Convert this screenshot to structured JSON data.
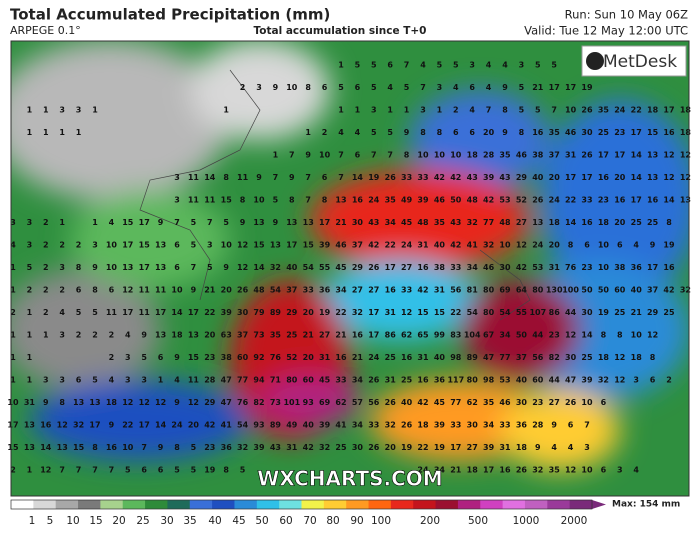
{
  "header": {
    "title": "Total Accumulated Precipitation (mm)",
    "model": "ARPEGE 0.1°",
    "subtitle": "Total accumulation since T+0",
    "run": "Run: Sun 10 May 06Z",
    "valid": "Valid: Tue 12 May 12:00 UTC"
  },
  "logo": "MetDesk",
  "watermark": "WXCHARTS.COM",
  "legend": {
    "labels": [
      1,
      5,
      10,
      15,
      20,
      25,
      30,
      35,
      40,
      45,
      50,
      60,
      70,
      80,
      90,
      100,
      200,
      500,
      1000,
      2000
    ],
    "colors": [
      "#ffffff",
      "#d8d8d8",
      "#a8a8a8",
      "#7a7a7a",
      "#a7d28d",
      "#5cb85c",
      "#2e8b3a",
      "#1e6b5a",
      "#3a6fd8",
      "#1f4fc0",
      "#2a8bd8",
      "#30c0e8",
      "#6ee0e0",
      "#f2f24a",
      "#ffcc33",
      "#ff9a22",
      "#ff6611",
      "#e8281c",
      "#c4141c",
      "#9b1030",
      "#b02080",
      "#d040c0",
      "#e070e0",
      "#c060c0",
      "#9a3a9a",
      "#7a2a7a"
    ],
    "max": "Max: 154 mm"
  },
  "grid": {
    "rows": [
      [
        null,
        null,
        null,
        null,
        null,
        null,
        null,
        null,
        null,
        null,
        null,
        null,
        null,
        null,
        null,
        null,
        null,
        null,
        null,
        null,
        1,
        5,
        5,
        6,
        7,
        4,
        5,
        5,
        3,
        4,
        4,
        3,
        5,
        5,
        null,
        null,
        null,
        null,
        null,
        null,
        null,
        null
      ],
      [
        null,
        null,
        null,
        null,
        null,
        null,
        null,
        null,
        null,
        null,
        null,
        null,
        null,
        null,
        2,
        3,
        9,
        10,
        8,
        6,
        5,
        6,
        5,
        4,
        5,
        7,
        3,
        4,
        6,
        4,
        9,
        5,
        21,
        17,
        17,
        19,
        null,
        null,
        null,
        null,
        null,
        null
      ],
      [
        null,
        1,
        1,
        3,
        3,
        1,
        null,
        null,
        null,
        null,
        null,
        null,
        null,
        1,
        null,
        null,
        null,
        null,
        null,
        null,
        1,
        1,
        3,
        1,
        1,
        3,
        1,
        2,
        4,
        7,
        8,
        5,
        5,
        7,
        10,
        26,
        35,
        24,
        22,
        18,
        17,
        18
      ],
      [
        null,
        1,
        1,
        1,
        1,
        null,
        null,
        null,
        null,
        null,
        null,
        null,
        null,
        null,
        null,
        null,
        null,
        null,
        1,
        2,
        4,
        4,
        5,
        5,
        9,
        8,
        8,
        6,
        6,
        20,
        9,
        8,
        16,
        35,
        46,
        30,
        25,
        23,
        17,
        15,
        16,
        18
      ],
      [
        null,
        null,
        null,
        null,
        null,
        null,
        null,
        null,
        null,
        null,
        null,
        null,
        null,
        null,
        null,
        null,
        1,
        7,
        9,
        10,
        7,
        6,
        7,
        7,
        8,
        10,
        10,
        10,
        18,
        28,
        35,
        46,
        38,
        37,
        31,
        26,
        17,
        17,
        14,
        13,
        12,
        12
      ],
      [
        null,
        null,
        null,
        null,
        null,
        null,
        null,
        null,
        null,
        null,
        3,
        11,
        14,
        8,
        11,
        9,
        7,
        9,
        7,
        6,
        7,
        14,
        19,
        26,
        33,
        33,
        42,
        42,
        43,
        39,
        43,
        29,
        40,
        20,
        17,
        17,
        16,
        20,
        14,
        13,
        12,
        12
      ],
      [
        null,
        null,
        null,
        null,
        null,
        null,
        null,
        null,
        null,
        null,
        3,
        11,
        11,
        15,
        8,
        10,
        5,
        8,
        7,
        8,
        13,
        16,
        24,
        35,
        49,
        39,
        46,
        50,
        48,
        42,
        53,
        52,
        26,
        24,
        22,
        33,
        23,
        16,
        17,
        16,
        14,
        13
      ],
      [
        3,
        3,
        2,
        1,
        null,
        1,
        4,
        15,
        17,
        9,
        7,
        5,
        7,
        5,
        9,
        13,
        9,
        13,
        13,
        17,
        21,
        30,
        43,
        34,
        45,
        48,
        35,
        43,
        32,
        77,
        48,
        27,
        13,
        18,
        14,
        16,
        18,
        20,
        25,
        25,
        8,
        null
      ],
      [
        4,
        3,
        2,
        2,
        2,
        3,
        10,
        17,
        15,
        13,
        6,
        5,
        3,
        10,
        12,
        15,
        13,
        17,
        15,
        39,
        46,
        37,
        42,
        22,
        24,
        31,
        40,
        42,
        41,
        32,
        10,
        12,
        24,
        20,
        8,
        6,
        10,
        6,
        4,
        9,
        19,
        null
      ],
      [
        1,
        5,
        2,
        3,
        8,
        9,
        10,
        13,
        17,
        13,
        6,
        7,
        5,
        9,
        12,
        14,
        32,
        40,
        54,
        55,
        45,
        29,
        26,
        17,
        27,
        16,
        38,
        33,
        34,
        46,
        30,
        42,
        53,
        31,
        76,
        23,
        10,
        38,
        36,
        17,
        16,
        null
      ],
      [
        1,
        2,
        2,
        2,
        6,
        8,
        6,
        12,
        11,
        11,
        10,
        9,
        21,
        20,
        26,
        48,
        54,
        37,
        33,
        36,
        34,
        27,
        27,
        16,
        33,
        42,
        31,
        56,
        81,
        80,
        69,
        64,
        80,
        130,
        100,
        50,
        50,
        60,
        40,
        37,
        42,
        32
      ],
      [
        2,
        1,
        2,
        4,
        5,
        5,
        11,
        17,
        11,
        17,
        14,
        17,
        22,
        39,
        30,
        79,
        89,
        29,
        20,
        19,
        22,
        32,
        17,
        31,
        12,
        15,
        15,
        22,
        54,
        80,
        54,
        55,
        107,
        86,
        44,
        30,
        19,
        25,
        21,
        29,
        25,
        null
      ],
      [
        1,
        1,
        1,
        3,
        2,
        2,
        2,
        4,
        9,
        13,
        18,
        13,
        20,
        63,
        37,
        73,
        35,
        25,
        21,
        27,
        21,
        16,
        17,
        86,
        62,
        65,
        99,
        83,
        104,
        67,
        34,
        50,
        44,
        23,
        12,
        14,
        8,
        8,
        10,
        12,
        null,
        null
      ],
      [
        1,
        1,
        null,
        null,
        null,
        null,
        2,
        3,
        5,
        6,
        9,
        15,
        23,
        38,
        60,
        92,
        76,
        52,
        20,
        31,
        16,
        21,
        24,
        25,
        16,
        31,
        40,
        98,
        89,
        47,
        77,
        37,
        56,
        82,
        30,
        25,
        18,
        12,
        18,
        8,
        null,
        null
      ],
      [
        1,
        1,
        3,
        3,
        6,
        5,
        4,
        3,
        3,
        1,
        4,
        11,
        28,
        47,
        77,
        94,
        71,
        80,
        60,
        45,
        33,
        34,
        26,
        31,
        25,
        16,
        36,
        117,
        80,
        98,
        53,
        40,
        60,
        44,
        47,
        39,
        32,
        12,
        3,
        6,
        2,
        null
      ],
      [
        10,
        31,
        9,
        8,
        13,
        13,
        18,
        12,
        12,
        12,
        9,
        12,
        29,
        47,
        76,
        82,
        73,
        101,
        93,
        69,
        62,
        57,
        56,
        26,
        40,
        42,
        45,
        77,
        62,
        35,
        46,
        30,
        23,
        27,
        26,
        10,
        6,
        null,
        null,
        null,
        null,
        null
      ],
      [
        17,
        13,
        16,
        12,
        32,
        17,
        9,
        22,
        17,
        14,
        24,
        20,
        42,
        41,
        54,
        93,
        89,
        49,
        40,
        39,
        41,
        34,
        33,
        32,
        26,
        18,
        39,
        33,
        30,
        34,
        33,
        36,
        28,
        9,
        6,
        7,
        null,
        null,
        null,
        null,
        null,
        null
      ],
      [
        15,
        13,
        14,
        13,
        15,
        8,
        16,
        10,
        7,
        9,
        8,
        5,
        23,
        36,
        32,
        39,
        43,
        31,
        42,
        32,
        25,
        30,
        26,
        20,
        19,
        22,
        19,
        17,
        27,
        39,
        31,
        18,
        9,
        4,
        4,
        3,
        null,
        null,
        null,
        null,
        null,
        null
      ],
      [
        2,
        1,
        12,
        7,
        7,
        7,
        7,
        5,
        6,
        6,
        5,
        5,
        19,
        8,
        5,
        null,
        null,
        null,
        null,
        null,
        null,
        null,
        null,
        null,
        null,
        24,
        34,
        21,
        18,
        17,
        16,
        26,
        32,
        35,
        12,
        10,
        6,
        3,
        4,
        null,
        null,
        null
      ]
    ]
  }
}
